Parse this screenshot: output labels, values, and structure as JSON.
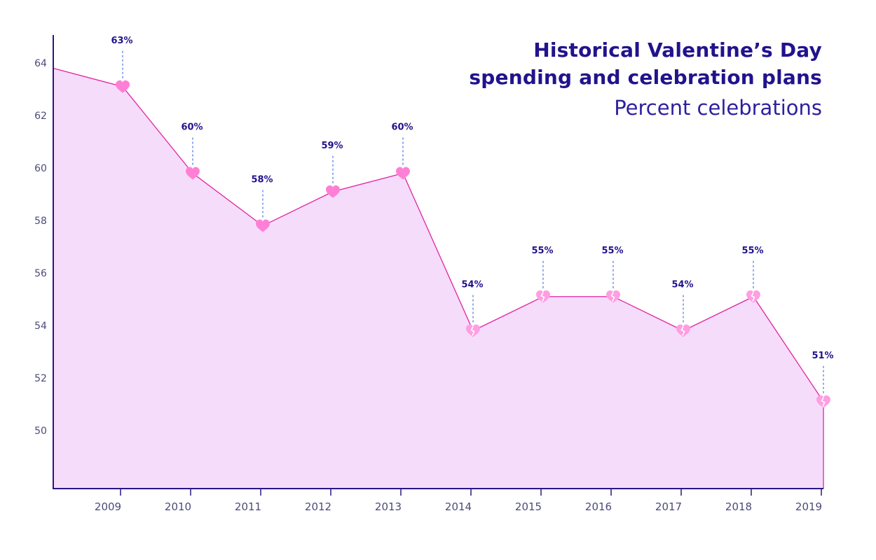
{
  "title_lines": [
    "Historical Valentine’s Day",
    "spending and celebration plans"
  ],
  "subtitle": "Percent celebrations",
  "colors": {
    "axis": "#2a1780",
    "line": "#e0249f",
    "area": "#f5dcfb",
    "heart_whole": "#ff7fd6",
    "heart_broken": "#ff9ee2",
    "leader": "#6f8fe8",
    "label": "#21138c"
  },
  "chart_data": {
    "type": "area",
    "title": "Historical Valentine’s Day spending and celebration plans",
    "subtitle": "Percent celebrations",
    "x": [
      "2009",
      "2010",
      "2011",
      "2012",
      "2013",
      "2014",
      "2015",
      "2016",
      "2017",
      "2018",
      "2019"
    ],
    "y": [
      63.1,
      59.8,
      57.8,
      59.1,
      59.8,
      53.8,
      55.1,
      55.1,
      53.8,
      55.1,
      51.1
    ],
    "data_labels": [
      "63%",
      "60%",
      "58%",
      "59%",
      "60%",
      "54%",
      "55%",
      "55%",
      "54%",
      "55%",
      "51%"
    ],
    "marker": [
      "heart",
      "heart",
      "heart",
      "heart",
      "heart",
      "broken-heart",
      "broken-heart",
      "broken-heart",
      "broken-heart",
      "broken-heart",
      "broken-heart"
    ],
    "start_value": 63.8,
    "yticks": [
      50,
      52,
      54,
      56,
      58,
      60,
      62,
      64
    ],
    "ylim": [
      47.8,
      65.4
    ],
    "xlabel": "",
    "ylabel": "",
    "grid": false,
    "legend": "none"
  }
}
